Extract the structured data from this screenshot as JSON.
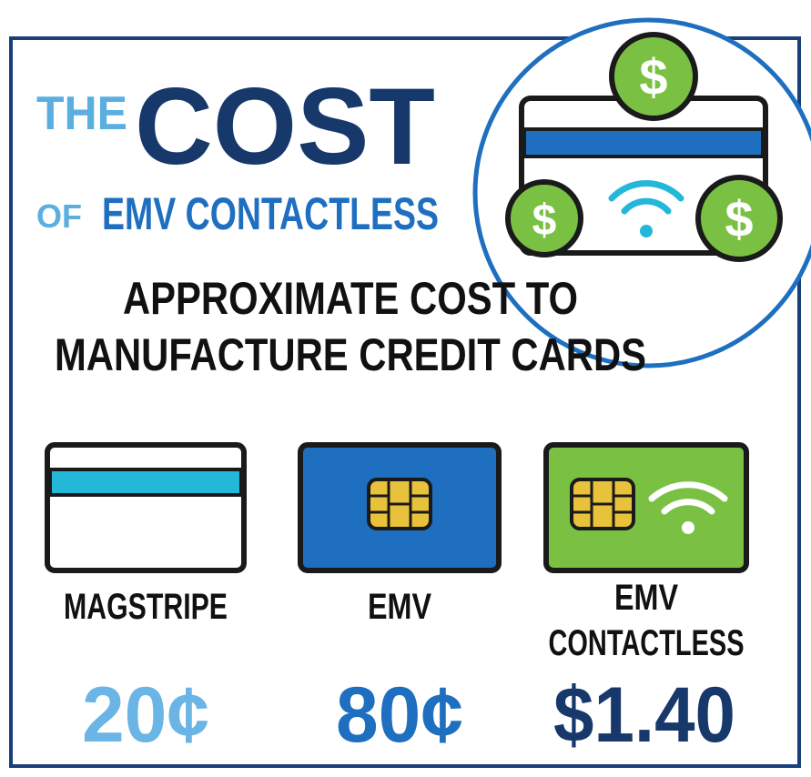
{
  "title": {
    "the": "THE",
    "cost": "COST",
    "of": "OF",
    "subject": "EMV CONTACTLESS"
  },
  "subtitle": [
    "APPROXIMATE COST TO",
    "MANUFACTURE CREDIT CARDS"
  ],
  "coin_symbol": "$",
  "cards": [
    {
      "label": [
        "MAGSTRIPE"
      ],
      "price": "20¢"
    },
    {
      "label": [
        "EMV"
      ],
      "price": "80¢"
    },
    {
      "label": [
        "EMV",
        "CONTACTLESS"
      ],
      "price": "$1.40"
    }
  ]
}
